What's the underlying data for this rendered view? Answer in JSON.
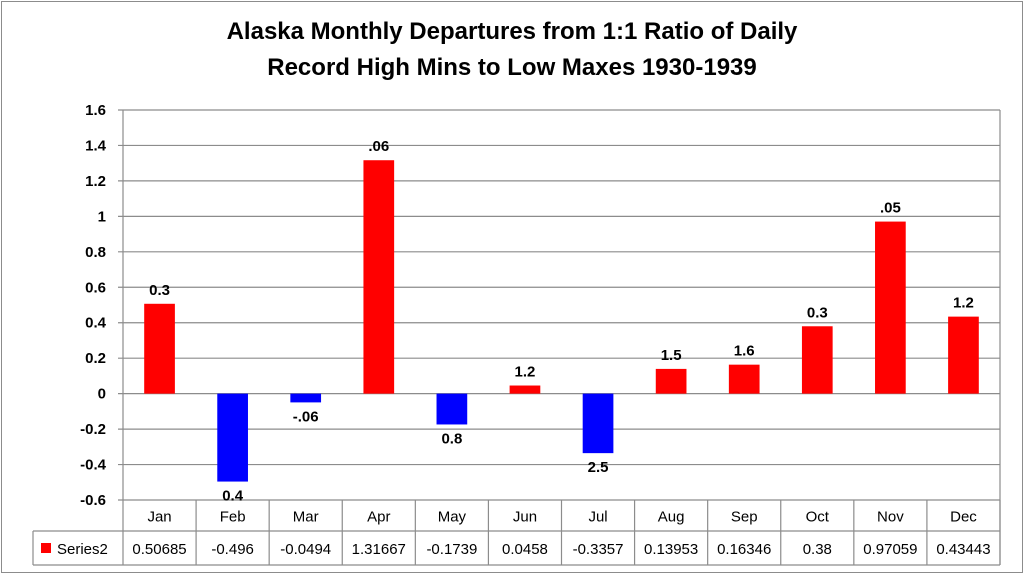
{
  "chart_data": {
    "type": "bar",
    "title": "Alaska Monthly Departures from 1:1 Ratio of Daily",
    "subtitle": "Record High Mins to Low Maxes 1930-1939",
    "categories": [
      "Jan",
      "Feb",
      "Mar",
      "Apr",
      "May",
      "Jun",
      "Jul",
      "Aug",
      "Sep",
      "Oct",
      "Nov",
      "Dec"
    ],
    "series": [
      {
        "name": "Series2",
        "values": [
          0.50685,
          -0.496,
          -0.0494,
          1.31667,
          -0.1739,
          0.0458,
          -0.3357,
          0.13953,
          0.16346,
          0.38,
          0.97059,
          0.43443
        ],
        "table_values": [
          "0.50685",
          "-0.496",
          "-0.0494",
          "1.31667",
          "-0.1739",
          "0.0458",
          "-0.3357",
          "0.13953",
          "0.16346",
          "0.38",
          "0.97059",
          "0.43443"
        ]
      }
    ],
    "data_labels": [
      "0.3",
      "0.4",
      "-.06",
      ".06",
      "0.8",
      "1.2",
      "2.5",
      "1.5",
      "1.6",
      "0.3",
      ".05",
      "1.2"
    ],
    "yticks": [
      "1.6",
      "1.4",
      "1.2",
      "1",
      "0.8",
      "0.6",
      "0.4",
      "0.2",
      "0",
      "-0.2",
      "-0.4",
      "-0.6"
    ],
    "ylim": [
      -0.6,
      1.6
    ],
    "grid": true,
    "legend": "data-table",
    "colors": {
      "positive": "#ff0000",
      "negative": "#0000ff",
      "grid": "#8c8c8c"
    }
  }
}
